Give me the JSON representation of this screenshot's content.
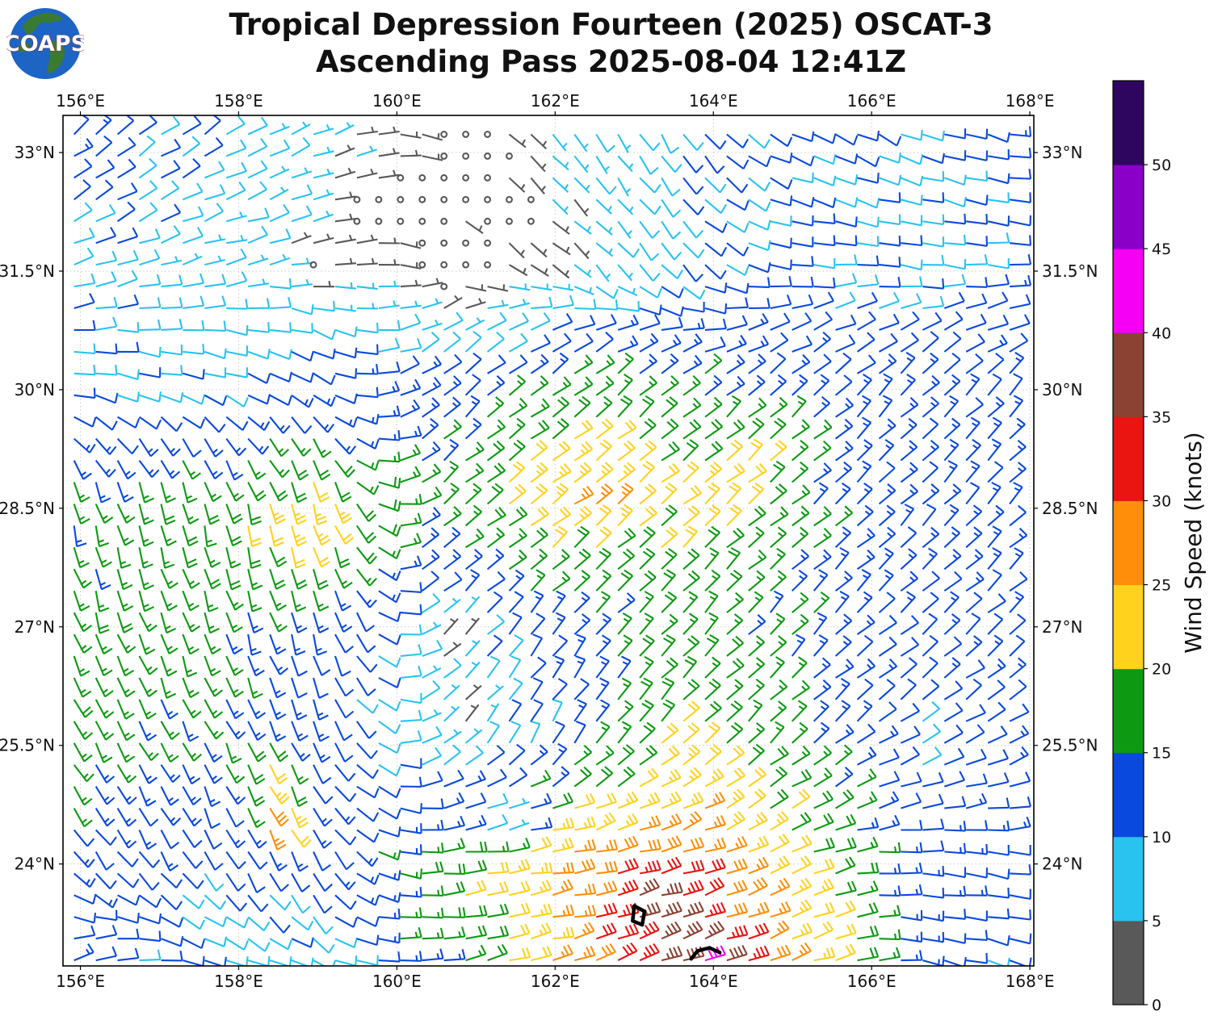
{
  "header": {
    "title_line1": "Tropical Depression Fourteen (2025) OSCAT-3",
    "title_line2": "Ascending Pass 2025-08-04 12:41Z",
    "logo_text": "COAPS"
  },
  "chart_data": {
    "type": "wind_barbs",
    "title": "Tropical Depression Fourteen (2025) OSCAT-3 Ascending Pass 2025-08-04 12:41Z",
    "projection": {
      "lon_range": [
        155.78,
        168.05
      ],
      "lat_range": [
        22.71,
        33.47
      ]
    },
    "x_axis": {
      "ticks": [
        {
          "value": 156,
          "label": "156°E"
        },
        {
          "value": 158,
          "label": "158°E"
        },
        {
          "value": 160,
          "label": "160°E"
        },
        {
          "value": 162,
          "label": "162°E"
        },
        {
          "value": 164,
          "label": "164°E"
        },
        {
          "value": 166,
          "label": "166°E"
        },
        {
          "value": 168,
          "label": "168°E"
        }
      ],
      "labels_on": [
        "top",
        "bottom"
      ]
    },
    "y_axis": {
      "ticks": [
        {
          "value": 24,
          "label": "24°N"
        },
        {
          "value": 25.5,
          "label": "25.5°N"
        },
        {
          "value": 27,
          "label": "27°N"
        },
        {
          "value": 28.5,
          "label": "28.5°N"
        },
        {
          "value": 30,
          "label": "30°N"
        },
        {
          "value": 31.5,
          "label": "31.5°N"
        },
        {
          "value": 33,
          "label": "33°N"
        }
      ],
      "labels_on": [
        "left",
        "right"
      ]
    },
    "grid": {
      "show": true,
      "style": "dotted",
      "color": "#cfc9c3"
    },
    "colorbar": {
      "label": "Wind Speed (knots)",
      "tick_values": [
        0,
        5,
        10,
        15,
        20,
        25,
        30,
        35,
        40,
        45,
        50
      ],
      "value_max": 55,
      "bands": [
        {
          "range": [
            0,
            5
          ],
          "color": "#595959"
        },
        {
          "range": [
            5,
            10
          ],
          "color": "#29c3f0"
        },
        {
          "range": [
            10,
            15
          ],
          "color": "#0a49dd"
        },
        {
          "range": [
            15,
            20
          ],
          "color": "#0d9a12"
        },
        {
          "range": [
            20,
            25
          ],
          "color": "#ffd21e"
        },
        {
          "range": [
            25,
            30
          ],
          "color": "#ff8f0a"
        },
        {
          "range": [
            30,
            35
          ],
          "color": "#ea1410"
        },
        {
          "range": [
            35,
            40
          ],
          "color": "#8b4232"
        },
        {
          "range": [
            40,
            45
          ],
          "color": "#f500f5"
        },
        {
          "range": [
            45,
            50
          ],
          "color": "#8a00c8"
        },
        {
          "range": [
            50,
            55
          ],
          "color": "#2e0660"
        }
      ]
    },
    "wind_field": {
      "units": "knots",
      "description": "Estimated OSCAT-3 surface wind control grid (direction = meteorological FROM azimuth)",
      "control_lons": [
        155.8,
        157.5,
        159,
        160.5,
        162,
        163.5,
        165,
        166.5,
        168.1
      ],
      "control_lats": [
        22.7,
        24,
        25.5,
        27,
        28.5,
        30,
        31.5,
        33.5
      ],
      "from_direction_deg": [
        [
          60,
          100,
          110,
          80,
          75,
          70,
          70,
          100,
          105
        ],
        [
          140,
          150,
          155,
          85,
          80,
          75,
          70,
          95,
          100
        ],
        [
          150,
          155,
          150,
          50,
          30,
          45,
          50,
          60,
          60
        ],
        [
          160,
          160,
          165,
          50,
          40,
          45,
          45,
          50,
          50
        ],
        [
          165,
          165,
          165,
          50,
          55,
          50,
          50,
          45,
          45
        ],
        [
          100,
          110,
          120,
          50,
          50,
          50,
          50,
          45,
          45
        ],
        [
          70,
          75,
          85,
          120,
          130,
          140,
          90,
          100,
          90
        ],
        [
          50,
          55,
          65,
          130,
          140,
          150,
          120,
          115,
          100
        ]
      ],
      "speed_kt": [
        [
          12,
          10,
          8,
          15,
          24,
          31,
          26,
          12,
          10
        ],
        [
          13,
          10,
          12,
          18,
          26,
          29,
          22,
          13,
          11
        ],
        [
          16,
          15,
          12,
          7,
          10,
          22,
          16,
          10,
          12
        ],
        [
          17,
          16,
          13,
          8,
          13,
          17,
          15,
          12,
          13
        ],
        [
          15,
          18,
          20,
          16,
          21,
          20,
          16,
          13,
          13
        ],
        [
          10,
          9,
          12,
          13,
          15,
          15,
          13,
          13,
          12
        ],
        [
          9,
          8,
          6,
          2,
          5,
          10,
          11,
          9,
          12
        ],
        [
          13,
          10,
          7,
          2,
          6,
          9,
          11,
          10,
          12
        ]
      ],
      "storm_center": {
        "lon": 161.35,
        "lat": 24.55
      },
      "calm_spots": [
        {
          "lon": 161.35,
          "lat": 24.55,
          "r": 0.55
        },
        {
          "lon": 160.95,
          "lat": 25.9,
          "r": 0.5
        },
        {
          "lon": 160.7,
          "lat": 26.9,
          "r": 0.5
        },
        {
          "lon": 159.6,
          "lat": 32.3,
          "r": 0.7
        },
        {
          "lon": 160.5,
          "lat": 31.8,
          "r": 0.8
        },
        {
          "lon": 160.9,
          "lat": 32.9,
          "r": 0.8
        },
        {
          "lon": 161.5,
          "lat": 32.2,
          "r": 0.6
        },
        {
          "lon": 159.0,
          "lat": 31.6,
          "r": 0.5
        }
      ],
      "speed_bumps": [
        {
          "lon": 163.4,
          "lat": 22.9,
          "r": 1.2,
          "amp": 4
        },
        {
          "lon": 164.0,
          "lat": 22.6,
          "r": 0.45,
          "amp": 11
        },
        {
          "lon": 163.1,
          "lat": 23.4,
          "r": 0.5,
          "amp": 5
        },
        {
          "lon": 158.5,
          "lat": 24.6,
          "r": 0.3,
          "amp": 19
        },
        {
          "lon": 158.3,
          "lat": 25.2,
          "r": 0.35,
          "amp": 10
        },
        {
          "lon": 162.3,
          "lat": 28.8,
          "r": 0.8,
          "amp": 6
        },
        {
          "lon": 164.3,
          "lat": 29.0,
          "r": 0.7,
          "amp": 5
        },
        {
          "lon": 158.8,
          "lat": 28.3,
          "r": 0.6,
          "amp": 5
        }
      ],
      "barb_grid_spacing_deg": 0.275,
      "direction_jitter_deg": 9,
      "speed_jitter_kt": 1.3,
      "random_seed": 77
    },
    "coastlines": [
      {
        "name": "islet-1",
        "closed": true,
        "points": [
          [
            163.0,
            23.47
          ],
          [
            163.13,
            23.4
          ],
          [
            163.1,
            23.23
          ],
          [
            162.98,
            23.28
          ]
        ]
      },
      {
        "name": "islet-2",
        "closed": false,
        "points": [
          [
            163.72,
            22.8
          ],
          [
            163.8,
            22.9
          ],
          [
            163.95,
            22.94
          ],
          [
            164.08,
            22.88
          ]
        ]
      }
    ]
  },
  "layout_colors": {
    "background": "#ffffff",
    "axis": "#000000",
    "text": "#111111",
    "coastline": "#000000",
    "logo_ocean": "#1d64c4",
    "logo_land": "#3a7a33"
  }
}
